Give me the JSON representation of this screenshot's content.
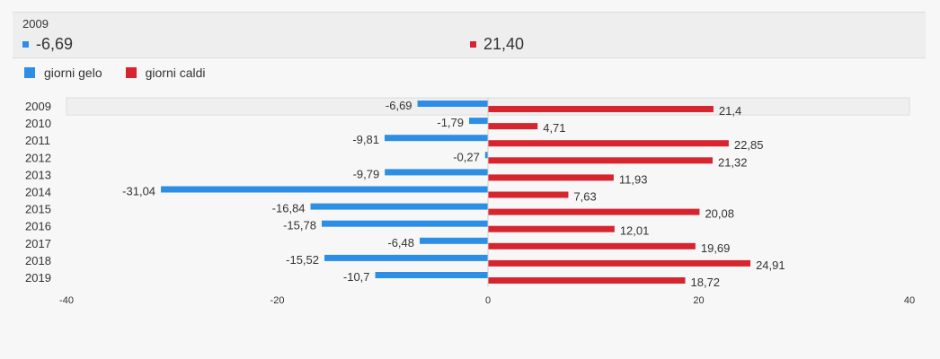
{
  "tooltip": {
    "year": "2009",
    "items": [
      {
        "value": "-6,69",
        "color": "#2d8ee6"
      },
      {
        "value": "21,40",
        "color": "#d7252f"
      }
    ]
  },
  "legend": [
    {
      "label": "giorni gelo",
      "color": "#2d8ee6"
    },
    {
      "label": "giorni caldi",
      "color": "#d7252f"
    }
  ],
  "chart_data": {
    "type": "bar",
    "orientation": "horizontal",
    "categories": [
      "2009",
      "2010",
      "2011",
      "2012",
      "2013",
      "2014",
      "2015",
      "2016",
      "2017",
      "2018",
      "2019"
    ],
    "series": [
      {
        "name": "giorni gelo",
        "color": "#2d8ee6",
        "values": [
          -6.69,
          -1.79,
          -9.81,
          -0.27,
          -9.79,
          -31.04,
          -16.84,
          -15.78,
          -6.48,
          -15.52,
          -10.7
        ],
        "labels": [
          "-6,69",
          "-1,79",
          "-9,81",
          "-0,27",
          "-9,79",
          "-31,04",
          "-16,84",
          "-15,78",
          "-6,48",
          "-15,52",
          "-10,7"
        ]
      },
      {
        "name": "giorni caldi",
        "color": "#d7252f",
        "values": [
          21.4,
          4.71,
          22.85,
          21.32,
          11.93,
          7.63,
          20.08,
          12.01,
          19.69,
          24.91,
          18.72
        ],
        "labels": [
          "21,4",
          "4,71",
          "22,85",
          "21,32",
          "11,93",
          "7,63",
          "20,08",
          "12,01",
          "19,69",
          "24,91",
          "18,72"
        ]
      }
    ],
    "xlim": [
      -40,
      40
    ],
    "xticks": [
      -40,
      -20,
      0,
      20,
      40
    ],
    "highlighted_category": "2009",
    "grid": false,
    "legend_position": "top-left"
  }
}
